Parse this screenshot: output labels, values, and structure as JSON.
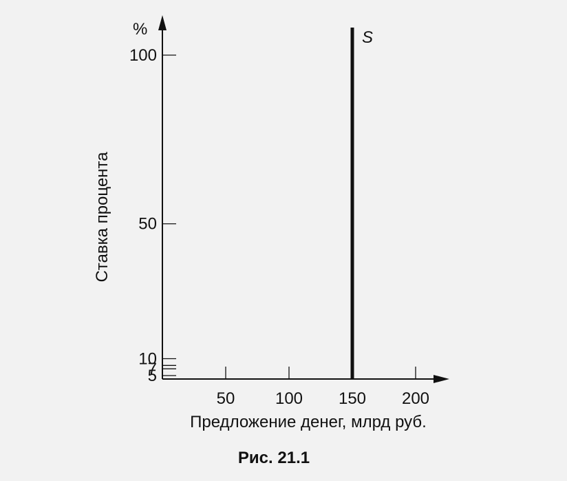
{
  "chart_data": {
    "type": "line",
    "caption": "Рис. 21.1",
    "xlabel": "Предложение денег, млрд руб.",
    "ylabel": "Ставка процента",
    "y_unit": "%",
    "xlim": [
      0,
      220
    ],
    "ylim": [
      0,
      108
    ],
    "x_ticks": [
      50,
      100,
      150,
      200
    ],
    "y_ticks": [
      5,
      7,
      10,
      50,
      100
    ],
    "y_ticks_extra": [
      8
    ],
    "grid": false,
    "series": [
      {
        "name": "S",
        "x": [
          150,
          150
        ],
        "y": [
          0,
          108
        ]
      }
    ]
  }
}
